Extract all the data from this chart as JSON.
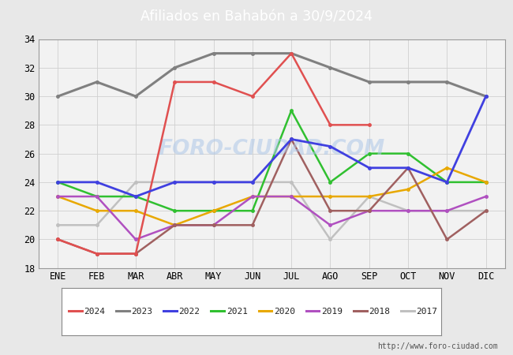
{
  "title": "Afiliados en Bahabón a 30/9/2024",
  "title_bg": "#5b9bd5",
  "months": [
    "ENE",
    "FEB",
    "MAR",
    "ABR",
    "MAY",
    "JUN",
    "JUL",
    "AGO",
    "SEP",
    "OCT",
    "NOV",
    "DIC"
  ],
  "ylim": [
    18,
    34
  ],
  "yticks": [
    18,
    20,
    22,
    24,
    26,
    28,
    30,
    32,
    34
  ],
  "series": [
    {
      "year": "2024",
      "values": [
        20,
        19,
        19,
        31,
        31,
        30,
        33,
        28,
        28,
        null,
        null,
        null
      ],
      "color": "#e05050",
      "linewidth": 1.8,
      "zorder": 5
    },
    {
      "year": "2023",
      "values": [
        30,
        31,
        30,
        32,
        33,
        33,
        33,
        32,
        31,
        31,
        31,
        30
      ],
      "color": "#808080",
      "linewidth": 2.2,
      "zorder": 4
    },
    {
      "year": "2022",
      "values": [
        24,
        24,
        23,
        24,
        24,
        24,
        27,
        26.5,
        25,
        25,
        24,
        30
      ],
      "color": "#4040e0",
      "linewidth": 2.0,
      "zorder": 6
    },
    {
      "year": "2021",
      "values": [
        24,
        23,
        23,
        22,
        22,
        22,
        29,
        24,
        26,
        26,
        24,
        24
      ],
      "color": "#30c030",
      "linewidth": 1.8,
      "zorder": 3
    },
    {
      "year": "2020",
      "values": [
        23,
        22,
        22,
        21,
        22,
        23,
        23,
        23,
        23,
        23.5,
        25,
        24
      ],
      "color": "#e8a800",
      "linewidth": 1.8,
      "zorder": 3
    },
    {
      "year": "2019",
      "values": [
        23,
        23,
        20,
        21,
        21,
        23,
        23,
        21,
        22,
        22,
        22,
        23
      ],
      "color": "#b050c0",
      "linewidth": 1.8,
      "zorder": 3
    },
    {
      "year": "2018",
      "values": [
        20,
        19,
        19,
        21,
        21,
        21,
        27,
        22,
        22,
        25,
        20,
        22
      ],
      "color": "#a06060",
      "linewidth": 1.8,
      "zorder": 3
    },
    {
      "year": "2017",
      "values": [
        21,
        21,
        24,
        24,
        24,
        24,
        24,
        20,
        23,
        22,
        22,
        22
      ],
      "color": "#c0c0c0",
      "linewidth": 1.8,
      "zorder": 2
    }
  ],
  "watermark": "FORO-CIUDAD.COM",
  "url": "http://www.foro-ciudad.com",
  "bg_color": "#e8e8e8",
  "plot_bg_color": "#f2f2f2",
  "legend_bg": "#ffffff"
}
